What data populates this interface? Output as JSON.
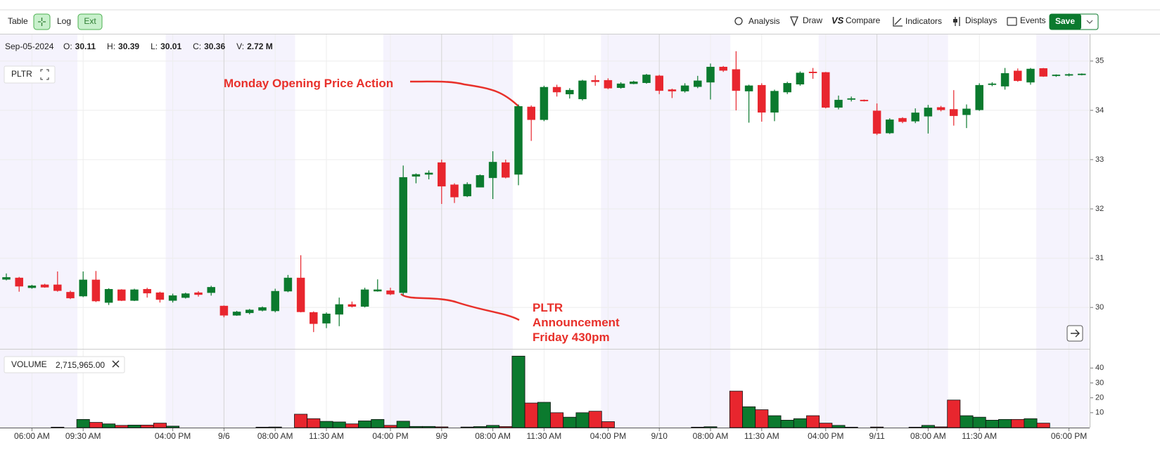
{
  "toolbar": {
    "left": [
      "Table",
      "Log",
      "Ext"
    ],
    "right": [
      "Analysis",
      "Draw",
      "Compare",
      "Indicators",
      "Displays",
      "Events"
    ],
    "save": "Save"
  },
  "info": {
    "date": "Sep-05-2024",
    "items": [
      {
        "label": "O:",
        "value": "30.11"
      },
      {
        "label": "H:",
        "value": "30.39"
      },
      {
        "label": "L:",
        "value": "30.01"
      },
      {
        "label": "C:",
        "value": "30.36"
      },
      {
        "label": "V:",
        "value": "2.72 M"
      }
    ]
  },
  "symbol": "PLTR",
  "volume_legend": {
    "label": "VOLUME",
    "value": "2,715,965.00"
  },
  "chart_data": {
    "type": "candlestick",
    "annotations": [
      {
        "lines": [
          "Monday Opening Price Action"
        ]
      },
      {
        "lines": [
          "PLTR",
          "Announcement",
          "Friday 430pm"
        ]
      }
    ],
    "categories": [
      null,
      null,
      "06:00 AM",
      null,
      null,
      null,
      "09:30 AM",
      null,
      null,
      null,
      null,
      null,
      null,
      "04:00 PM",
      null,
      null,
      null,
      "9/6",
      null,
      null,
      null,
      "08:00 AM",
      null,
      null,
      null,
      "11:30 AM",
      null,
      null,
      null,
      null,
      "04:00 PM",
      null,
      null,
      null,
      "9/9",
      null,
      null,
      null,
      "08:00 AM",
      null,
      null,
      null,
      "11:30 AM",
      null,
      null,
      null,
      null,
      "04:00 PM",
      null,
      null,
      null,
      "9/10",
      null,
      null,
      null,
      "08:00 AM",
      null,
      null,
      null,
      "11:30 AM",
      null,
      null,
      null,
      null,
      "04:00 PM",
      null,
      null,
      null,
      "9/11",
      null,
      null,
      null,
      "08:00 AM",
      null,
      null,
      null,
      "11:30 AM",
      null,
      null,
      null,
      null,
      null,
      null,
      "06:00 PM",
      null
    ],
    "open": [
      30.57,
      30.6,
      30.4,
      30.46,
      30.46,
      30.31,
      30.23,
      30.56,
      30.1,
      30.36,
      30.14,
      30.37,
      30.3,
      30.14,
      30.2,
      30.3,
      30.3,
      30.03,
      29.84,
      29.89,
      29.94,
      29.93,
      30.33,
      30.6,
      29.9,
      29.68,
      29.86,
      30.06,
      30.02,
      30.33,
      30.34,
      30.3,
      32.66,
      32.7,
      32.94,
      32.49,
      32.26,
      32.44,
      32.63,
      32.94,
      32.7,
      34.07,
      33.81,
      34.47,
      34.33,
      34.23,
      34.61,
      34.61,
      34.46,
      34.54,
      34.56,
      34.7,
      34.42,
      34.39,
      34.48,
      34.57,
      34.88,
      34.83,
      34.39,
      34.51,
      33.96,
      34.37,
      34.53,
      34.78,
      34.77,
      34.06,
      34.22,
      34.21,
      33.99,
      33.54,
      33.84,
      33.78,
      33.88,
      34.06,
      34.02,
      33.91,
      34.01,
      34.52,
      34.49,
      34.8,
      34.57,
      34.85,
      34.7,
      34.71,
      34.72
    ],
    "high": [
      30.69,
      30.62,
      30.46,
      30.48,
      30.73,
      30.34,
      30.73,
      30.74,
      30.39,
      30.37,
      30.38,
      30.4,
      30.32,
      30.28,
      30.3,
      30.33,
      30.44,
      30.04,
      29.93,
      29.97,
      30.02,
      30.38,
      30.66,
      31.06,
      29.92,
      29.9,
      30.2,
      30.12,
      30.4,
      30.57,
      30.4,
      32.88,
      32.72,
      32.78,
      33.0,
      32.52,
      32.54,
      32.7,
      33.17,
      33.0,
      34.12,
      34.1,
      34.5,
      34.52,
      34.45,
      34.62,
      34.71,
      34.65,
      34.57,
      34.6,
      34.74,
      34.72,
      34.44,
      34.55,
      34.7,
      34.95,
      34.9,
      35.2,
      34.52,
      34.55,
      34.42,
      34.58,
      34.79,
      34.86,
      34.78,
      34.3,
      34.28,
      34.22,
      34.14,
      33.84,
      33.86,
      34.04,
      34.11,
      34.09,
      34.41,
      34.12,
      34.55,
      34.57,
      34.86,
      34.85,
      34.86,
      34.86,
      34.73,
      34.75,
      34.75
    ],
    "low": [
      30.55,
      30.32,
      30.38,
      30.4,
      30.32,
      30.17,
      30.21,
      30.11,
      30.05,
      30.13,
      30.13,
      30.2,
      30.1,
      30.1,
      30.18,
      30.22,
      30.24,
      29.8,
      29.83,
      29.86,
      29.92,
      29.9,
      30.31,
      29.9,
      29.5,
      29.58,
      29.62,
      30.0,
      30.0,
      30.32,
      30.25,
      30.25,
      32.52,
      32.6,
      32.1,
      32.12,
      32.24,
      32.44,
      32.2,
      32.62,
      32.48,
      33.38,
      33.78,
      34.28,
      34.24,
      34.2,
      34.5,
      34.43,
      34.44,
      34.53,
      34.54,
      34.33,
      34.25,
      34.36,
      34.45,
      34.22,
      34.78,
      34.0,
      33.75,
      33.77,
      33.78,
      34.33,
      34.5,
      34.64,
      34.04,
      34.02,
      34.18,
      34.18,
      33.5,
      33.52,
      33.74,
      33.74,
      33.53,
      33.98,
      33.69,
      33.64,
      33.99,
      34.49,
      34.42,
      34.58,
      34.52,
      34.68,
      34.68,
      34.69,
      34.71
    ],
    "close": [
      30.61,
      30.43,
      30.44,
      30.41,
      30.34,
      30.19,
      30.56,
      30.13,
      30.37,
      30.14,
      30.36,
      30.29,
      30.16,
      30.24,
      30.28,
      30.26,
      30.41,
      29.84,
      29.91,
      29.95,
      30.0,
      30.33,
      30.6,
      29.91,
      29.67,
      29.87,
      30.06,
      30.02,
      30.36,
      30.36,
      30.27,
      32.64,
      32.7,
      32.73,
      32.46,
      32.24,
      32.5,
      32.68,
      32.95,
      32.64,
      34.08,
      33.81,
      34.47,
      34.37,
      34.41,
      34.6,
      34.58,
      34.45,
      34.54,
      34.58,
      34.72,
      34.4,
      34.39,
      34.5,
      34.6,
      34.88,
      34.81,
      34.4,
      34.5,
      33.96,
      34.39,
      34.55,
      34.76,
      34.76,
      34.06,
      34.21,
      34.24,
      34.19,
      33.53,
      33.81,
      33.77,
      33.95,
      34.05,
      34.01,
      33.89,
      34.03,
      34.51,
      34.54,
      34.75,
      34.6,
      34.84,
      34.69,
      34.72,
      34.73,
      34.74
    ],
    "volume": [
      0,
      0,
      0,
      0,
      0.3,
      0,
      5.5,
      3.5,
      2.5,
      1.5,
      1.7,
      1.7,
      3,
      1,
      0,
      0,
      0,
      0,
      0,
      0,
      0.3,
      0.4,
      0,
      9,
      6,
      4.2,
      3.8,
      2.5,
      4.5,
      5.5,
      1.5,
      4.3,
      0.8,
      0.8,
      0.5,
      0,
      0.4,
      0.7,
      1.5,
      0.7,
      48,
      16.5,
      17,
      10,
      7,
      10,
      11,
      4,
      0,
      0,
      0,
      0,
      0,
      0,
      0.3,
      0.6,
      0,
      24.5,
      14,
      12,
      8,
      5,
      6,
      8,
      3,
      1.5,
      0.3,
      0,
      0.4,
      0,
      0,
      0.3,
      1.5,
      0.5,
      18.5,
      8,
      7,
      5,
      5.5,
      5.5,
      6,
      3,
      0,
      0,
      0
    ],
    "up_color": "#0b7a2e",
    "down_color": "#e8262e",
    "ylim": [
      29.16,
      35.54
    ],
    "yticks": [
      30,
      31,
      32,
      33,
      34,
      35
    ],
    "volume_ylim": [
      0,
      52.4
    ],
    "volume_yticks": [
      10,
      20,
      30,
      40
    ],
    "grid": true
  }
}
